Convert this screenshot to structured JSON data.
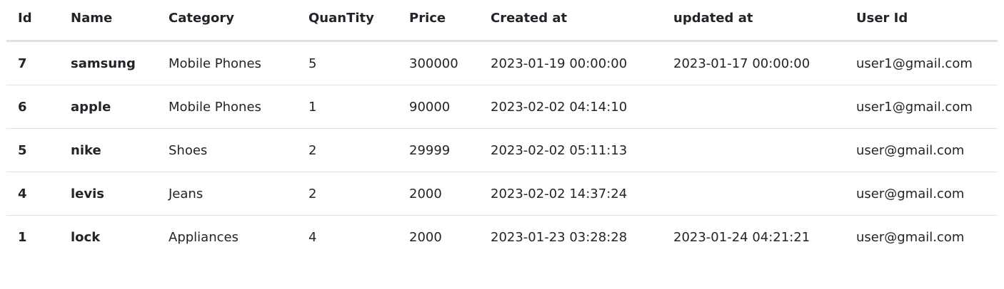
{
  "table": {
    "headers": [
      "Id",
      "Name",
      "Category",
      "QuanTity",
      "Price",
      "Created at",
      "updated at",
      "User Id"
    ],
    "rows": [
      {
        "id": "7",
        "name": "samsung",
        "category": "Mobile Phones",
        "quantity": "5",
        "price": "300000",
        "created_at": "2023-01-19 00:00:00",
        "updated_at": "2023-01-17 00:00:00",
        "user_id": "user1@gmail.com"
      },
      {
        "id": "6",
        "name": "apple",
        "category": "Mobile Phones",
        "quantity": "1",
        "price": "90000",
        "created_at": "2023-02-02 04:14:10",
        "updated_at": "",
        "user_id": "user1@gmail.com"
      },
      {
        "id": "5",
        "name": "nike",
        "category": "Shoes",
        "quantity": "2",
        "price": "29999",
        "created_at": "2023-02-02 05:11:13",
        "updated_at": "",
        "user_id": "user@gmail.com"
      },
      {
        "id": "4",
        "name": "levis",
        "category": "Jeans",
        "quantity": "2",
        "price": "2000",
        "created_at": "2023-02-02 14:37:24",
        "updated_at": "",
        "user_id": "user@gmail.com"
      },
      {
        "id": "1",
        "name": "lock",
        "category": "Appliances",
        "quantity": "4",
        "price": "2000",
        "created_at": "2023-01-23 03:28:28",
        "updated_at": "2023-01-24 04:21:21",
        "user_id": "user@gmail.com"
      }
    ]
  }
}
